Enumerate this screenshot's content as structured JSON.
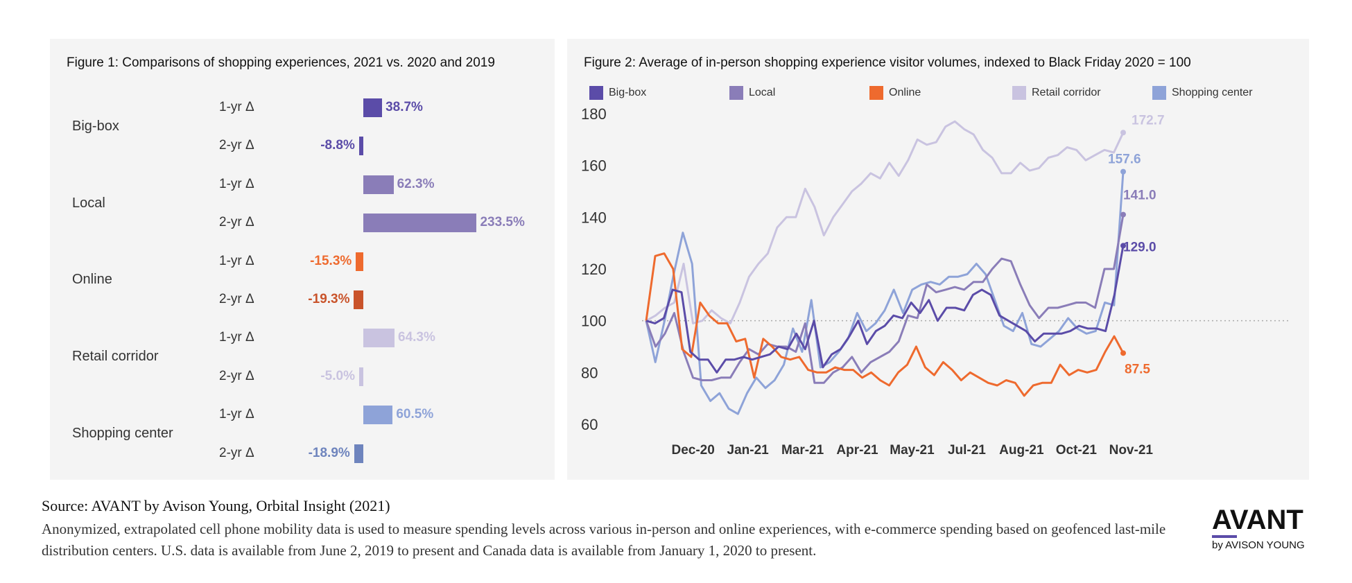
{
  "colors": {
    "bigbox": "#5b4ca8",
    "local": "#8a7db8",
    "online": "#ee6a2e",
    "online_dark": "#c9532a",
    "retail": "#c9c3e0",
    "shopping": "#8ea3d8",
    "shopping_dark": "#6e84bd"
  },
  "footer": {
    "source": "Source: AVANT by Avison Young, Orbital Insight (2021)",
    "note": "Anonymized, extrapolated cell phone mobility data is used to measure spending levels across various in-person and online experiences, with e-commerce spending based on geofenced last-mile distribution centers. U.S. data is available from June 2, 2019 to present and Canada data is available from January 1, 2020 to present."
  },
  "logo": {
    "main": "AVANT",
    "sub": "by AVISON YOUNG"
  },
  "chart_data": [
    {
      "type": "bar",
      "orientation": "horizontal",
      "title": "Figure 1: Comparisons of shopping experiences, 2021 vs. 2020 and 2019",
      "categories": [
        "Big-box",
        "Local",
        "Online",
        "Retail corridor",
        "Shopping center"
      ],
      "period_labels": [
        "1-yr Δ",
        "2-yr Δ"
      ],
      "value_labels": [
        [
          "38.7%",
          "-8.8%"
        ],
        [
          "62.3%",
          "233.5%"
        ],
        [
          "-15.3%",
          "-19.3%"
        ],
        [
          "64.3%",
          "-5.0%"
        ],
        [
          "60.5%",
          "-18.9%"
        ]
      ],
      "values": [
        [
          38.7,
          -8.8
        ],
        [
          62.3,
          233.5
        ],
        [
          -15.3,
          -19.3
        ],
        [
          64.3,
          -5.0
        ],
        [
          60.5,
          -18.9
        ]
      ],
      "unit": "%"
    },
    {
      "type": "line",
      "title": "Figure 2: Average of in-person shopping experience visitor volumes, indexed to Black Friday 2020 = 100",
      "x_ticks": [
        "Dec-20",
        "Jan-21",
        "Mar-21",
        "Apr-21",
        "May-21",
        "Jul-21",
        "Aug-21",
        "Oct-21",
        "Nov-21"
      ],
      "x_tick_week": [
        6,
        13,
        20,
        27,
        34,
        41,
        48,
        55,
        62
      ],
      "x_range": [
        0,
        61
      ],
      "y_ticks": [
        60,
        80,
        100,
        120,
        140,
        160,
        180
      ],
      "ylim": [
        60,
        180
      ],
      "reference_line": 100,
      "series": [
        {
          "name": "Big-box",
          "end_label": "129.0",
          "values": [
            100,
            99,
            101,
            112,
            111,
            88,
            85,
            85,
            80,
            85,
            85,
            86,
            85,
            86,
            87,
            90,
            89,
            95,
            89,
            100,
            82,
            87,
            89,
            94,
            100,
            91,
            96,
            98,
            102,
            101,
            107,
            103,
            108,
            100,
            105,
            105,
            104,
            110,
            112,
            110,
            102,
            100,
            98,
            96,
            92,
            95,
            95,
            95,
            96,
            98,
            97,
            97,
            96,
            110,
            129
          ]
        },
        {
          "name": "Local",
          "end_label": "141.0",
          "values": [
            100,
            90,
            95,
            103,
            88,
            78,
            77,
            77,
            78,
            78,
            84,
            89,
            87,
            91,
            90,
            90,
            88,
            99,
            76,
            76,
            80,
            82,
            86,
            80,
            84,
            86,
            88,
            92,
            102,
            101,
            114,
            111,
            112,
            113,
            112,
            115,
            115,
            120,
            124,
            123,
            114,
            106,
            101,
            105,
            105,
            106,
            107,
            107,
            105,
            120,
            120,
            141
          ]
        },
        {
          "name": "Online",
          "end_label": "87.5",
          "values": [
            100,
            125,
            126,
            120,
            89,
            86,
            107,
            102,
            99,
            99,
            92,
            93,
            78,
            93,
            90,
            86,
            85,
            86,
            81,
            80,
            80,
            82,
            81,
            81,
            78,
            80,
            77,
            75,
            80,
            83,
            90,
            82,
            79,
            84,
            81,
            77,
            80,
            78,
            76,
            75,
            77,
            76,
            71,
            75,
            76,
            76,
            83,
            79,
            81,
            80,
            81,
            88,
            94,
            87.5
          ]
        },
        {
          "name": "Retail corridor",
          "end_label": "172.7",
          "values": [
            100,
            102,
            105,
            107,
            122,
            99,
            100,
            104,
            101,
            99,
            107,
            117,
            122,
            126,
            136,
            140,
            140,
            151,
            144,
            133,
            140,
            145,
            150,
            153,
            157,
            155,
            161,
            156,
            162,
            170,
            168,
            169,
            175,
            177,
            174,
            172,
            166,
            163,
            157,
            157,
            161,
            158,
            159,
            163,
            164,
            167,
            166,
            162,
            164,
            166,
            165,
            172.7
          ]
        },
        {
          "name": "Shopping center",
          "end_label": "157.6",
          "values": [
            100,
            84,
            100,
            118,
            134,
            122,
            75,
            69,
            72,
            66,
            64,
            72,
            78,
            74,
            77,
            83,
            97,
            88,
            108,
            82,
            84,
            88,
            93,
            103,
            96,
            99,
            104,
            112,
            103,
            112,
            114,
            115,
            114,
            117,
            117,
            118,
            122,
            118,
            108,
            98,
            96,
            103,
            91,
            90,
            93,
            96,
            101,
            97,
            95,
            96,
            107,
            106,
            157.6
          ]
        }
      ],
      "legend_position": "top"
    }
  ]
}
